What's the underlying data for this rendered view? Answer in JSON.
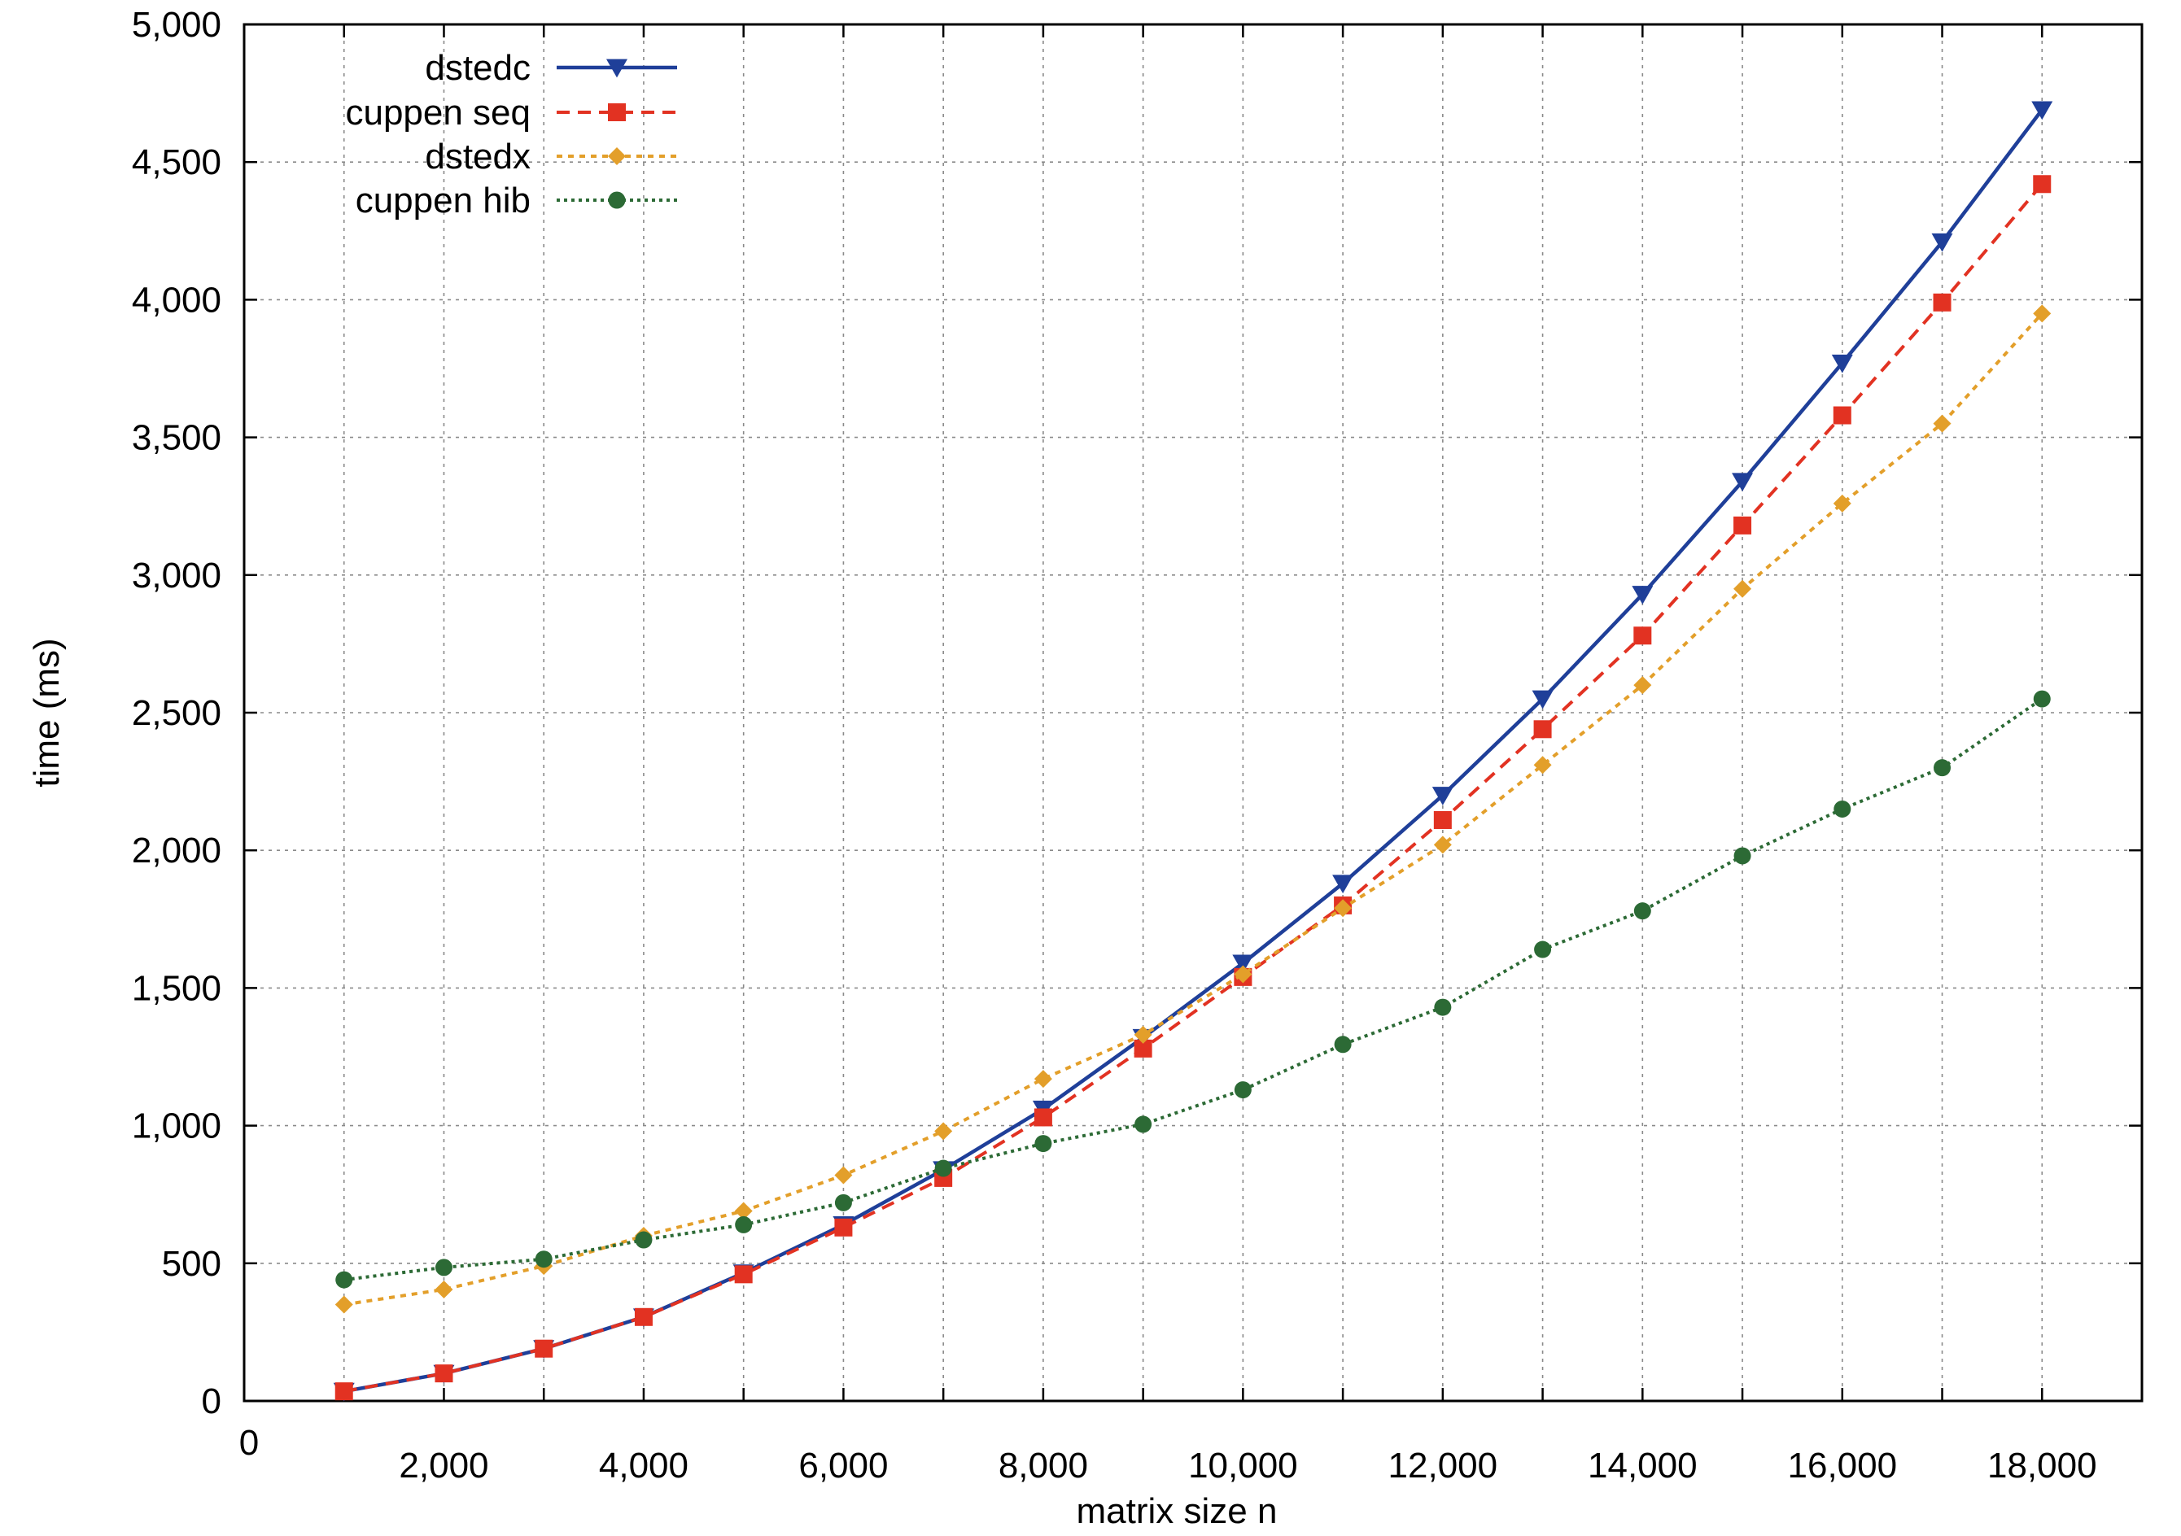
{
  "chart_data": {
    "type": "line",
    "title": "",
    "xlabel": "matrix size n",
    "ylabel": "time (ms)",
    "xlim": [
      0,
      19000
    ],
    "ylim": [
      0,
      5000
    ],
    "x_ticks": [
      2000,
      4000,
      6000,
      8000,
      10000,
      12000,
      14000,
      16000,
      18000
    ],
    "x_tick_labels": [
      "2,000",
      "4,000",
      "6,000",
      "8,000",
      "10,000",
      "12,000",
      "14,000",
      "16,000",
      "18,000"
    ],
    "x_origin_label": "0",
    "x_grid": [
      1000,
      2000,
      3000,
      4000,
      5000,
      6000,
      7000,
      8000,
      9000,
      10000,
      11000,
      12000,
      13000,
      14000,
      15000,
      16000,
      17000,
      18000
    ],
    "y_ticks": [
      0,
      500,
      1000,
      1500,
      2000,
      2500,
      3000,
      3500,
      4000,
      4500,
      5000
    ],
    "y_tick_labels": [
      "0",
      "500",
      "1,000",
      "1,500",
      "2,000",
      "2,500",
      "3,000",
      "3,500",
      "4,000",
      "4,500",
      "5,000"
    ],
    "grid": true,
    "legend_position": "top-left",
    "x": [
      1000,
      2000,
      3000,
      4000,
      5000,
      6000,
      7000,
      8000,
      9000,
      10000,
      11000,
      12000,
      13000,
      14000,
      15000,
      16000,
      17000,
      18000
    ],
    "series": [
      {
        "name": "dstedc",
        "color": "#1f3f99",
        "dash": "solid",
        "marker": "triangle-down",
        "values": [
          35,
          100,
          190,
          305,
          465,
          640,
          840,
          1060,
          1320,
          1590,
          1880,
          2200,
          2550,
          2930,
          3340,
          3770,
          4210,
          4690
        ]
      },
      {
        "name": "cuppen seq",
        "color": "#e23222",
        "dash": "dashed",
        "marker": "square",
        "values": [
          35,
          100,
          190,
          305,
          460,
          630,
          810,
          1030,
          1280,
          1540,
          1800,
          2110,
          2440,
          2780,
          3180,
          3580,
          3990,
          4420
        ]
      },
      {
        "name": "dstedx",
        "color": "#e39f2a",
        "dash": "dotted",
        "marker": "diamond",
        "values": [
          350,
          405,
          490,
          600,
          690,
          820,
          980,
          1170,
          1330,
          1550,
          1790,
          2020,
          2310,
          2600,
          2950,
          3260,
          3550,
          3950
        ]
      },
      {
        "name": "cuppen hib",
        "color": "#2c6a35",
        "dash": "dense-dotted",
        "marker": "circle",
        "values": [
          440,
          485,
          515,
          585,
          640,
          720,
          845,
          935,
          1005,
          1130,
          1295,
          1430,
          1640,
          1780,
          1980,
          2150,
          2300,
          2550
        ]
      }
    ]
  }
}
